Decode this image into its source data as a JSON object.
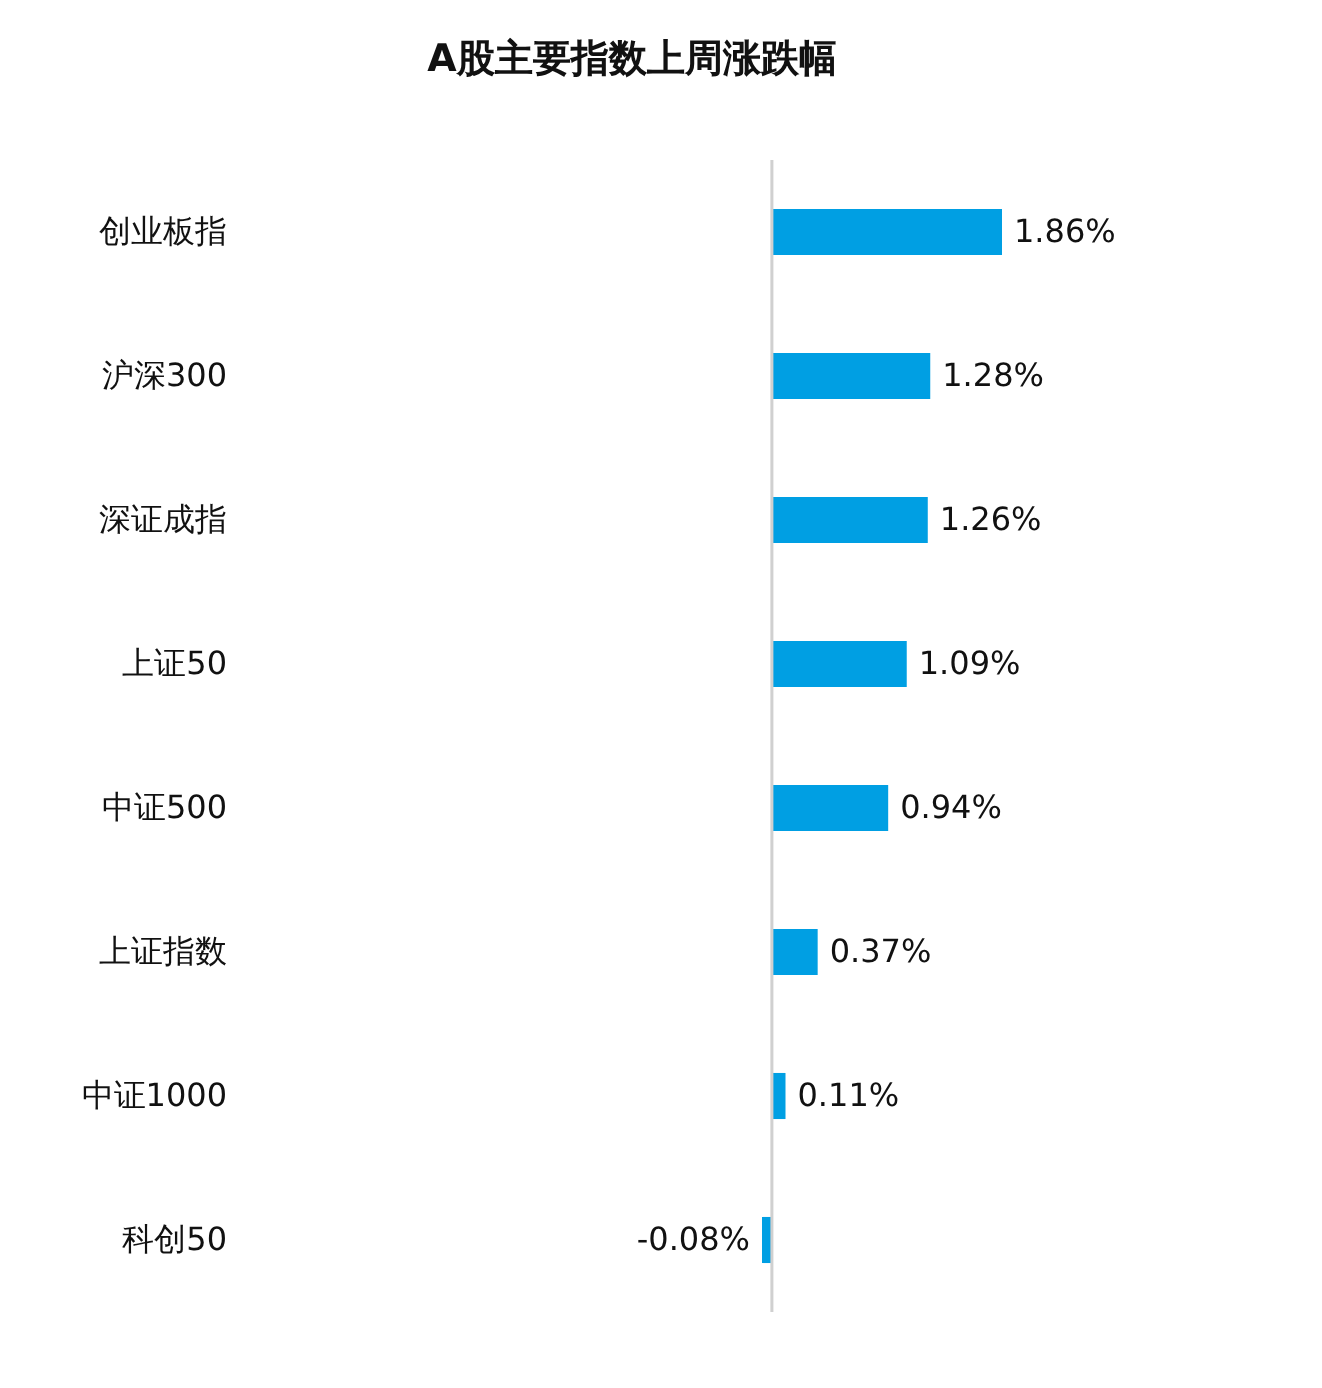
{
  "chart_data": {
    "type": "bar",
    "orientation": "horizontal",
    "title": "A股主要指数上周涨跌幅",
    "categories": [
      "创业板指",
      "沪深300",
      "深证成指",
      "上证50",
      "中证500",
      "上证指数",
      "中证1000",
      "科创50"
    ],
    "values": [
      1.86,
      1.28,
      1.26,
      1.09,
      0.94,
      0.37,
      0.11,
      -0.08
    ],
    "value_labels": [
      "1.86%",
      "1.28%",
      "1.26%",
      "1.09%",
      "0.94%",
      "0.37%",
      "0.11%",
      "-0.08%"
    ],
    "color": "#009fe3",
    "tick_labels": "y"
  }
}
